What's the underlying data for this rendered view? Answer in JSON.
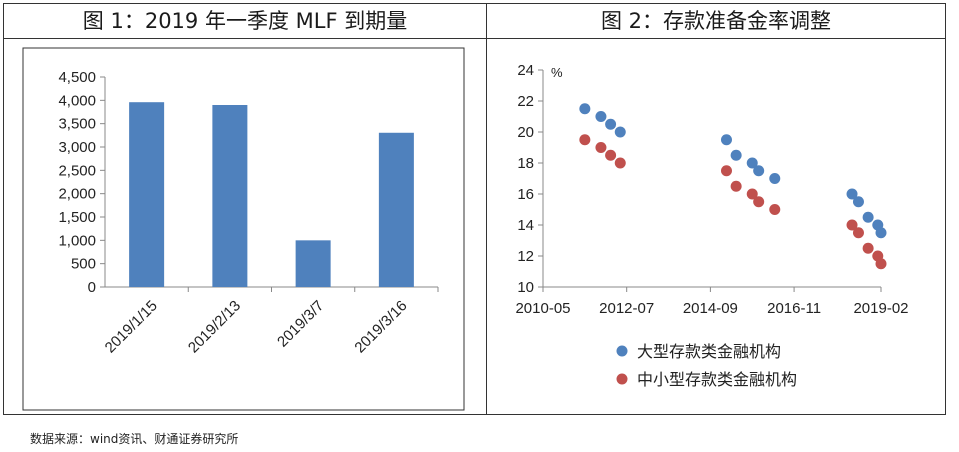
{
  "source": "数据来源：wind资讯、财通证券研究所",
  "chart_data": [
    {
      "type": "bar",
      "title": "图 1：2019 年一季度 MLF 到期量",
      "categories": [
        "2019/1/15",
        "2019/2/13",
        "2019/3/7",
        "2019/3/16"
      ],
      "values": [
        3960,
        3900,
        1000,
        3305
      ],
      "ylim": [
        0,
        4500
      ],
      "yticks": [
        0,
        500,
        1000,
        1500,
        2000,
        2500,
        3000,
        3500,
        4000,
        4500
      ],
      "ytick_labels": [
        "0",
        "500",
        "1,000",
        "1,500",
        "2,000",
        "2,500",
        "3,000",
        "3,500",
        "4,000",
        "4,500"
      ],
      "color": "#4f81bd",
      "grid": false
    },
    {
      "type": "scatter",
      "title": "图 2：存款准备金率调整",
      "ylabel": "%",
      "xlim": [
        "2010-05",
        "2019-02"
      ],
      "xticks": [
        "2010-05",
        "2012-07",
        "2014-09",
        "2016-11",
        "2019-02"
      ],
      "ylim": [
        10,
        24
      ],
      "yticks": [
        10,
        12,
        14,
        16,
        18,
        20,
        22,
        24
      ],
      "legend_position": "bottom",
      "series": [
        {
          "name": "大型存款类金融机构",
          "color": "#4f81bd",
          "points": [
            {
              "x": "2011-06",
              "y": 21.5
            },
            {
              "x": "2011-11",
              "y": 21.0
            },
            {
              "x": "2012-02",
              "y": 20.5
            },
            {
              "x": "2012-05",
              "y": 20.0
            },
            {
              "x": "2015-02",
              "y": 19.5
            },
            {
              "x": "2015-05",
              "y": 18.5
            },
            {
              "x": "2015-10",
              "y": 18.0
            },
            {
              "x": "2015-12",
              "y": 17.5
            },
            {
              "x": "2016-05",
              "y": 17.0
            },
            {
              "x": "2018-05",
              "y": 16.0
            },
            {
              "x": "2018-07",
              "y": 15.5
            },
            {
              "x": "2018-10",
              "y": 14.5
            },
            {
              "x": "2019-01",
              "y": 14.0
            },
            {
              "x": "2019-02",
              "y": 13.5
            }
          ]
        },
        {
          "name": "中小型存款类金融机构",
          "color": "#c0504d",
          "points": [
            {
              "x": "2011-06",
              "y": 19.5
            },
            {
              "x": "2011-11",
              "y": 19.0
            },
            {
              "x": "2012-02",
              "y": 18.5
            },
            {
              "x": "2012-05",
              "y": 18.0
            },
            {
              "x": "2015-02",
              "y": 17.5
            },
            {
              "x": "2015-05",
              "y": 16.5
            },
            {
              "x": "2015-10",
              "y": 16.0
            },
            {
              "x": "2015-12",
              "y": 15.5
            },
            {
              "x": "2016-05",
              "y": 15.0
            },
            {
              "x": "2018-05",
              "y": 14.0
            },
            {
              "x": "2018-07",
              "y": 13.5
            },
            {
              "x": "2018-10",
              "y": 12.5
            },
            {
              "x": "2019-01",
              "y": 12.0
            },
            {
              "x": "2019-02",
              "y": 11.5
            }
          ]
        }
      ]
    }
  ]
}
